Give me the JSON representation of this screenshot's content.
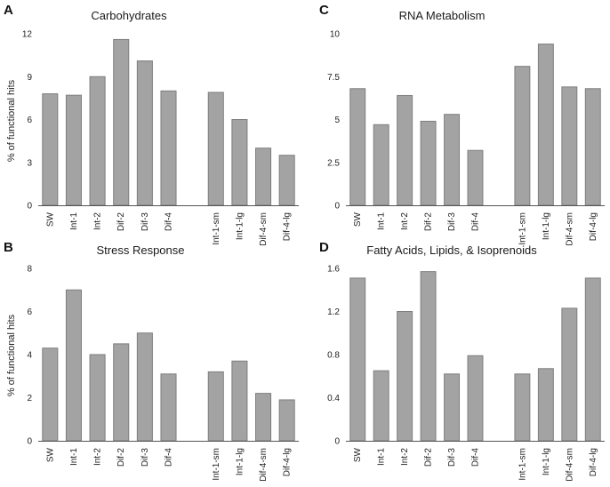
{
  "colors": {
    "bar_fill": "#a3a3a3",
    "bar_stroke": "#7e7e7e",
    "axis": "#555555",
    "text": "#222222"
  },
  "chart_data": [
    {
      "panel": "A",
      "type": "bar",
      "title": "Carbohydrates",
      "ylabel": "% of functional hits",
      "xlabel": "",
      "ylim": [
        0,
        12
      ],
      "yticks": [
        {
          "v": 0,
          "label": "0"
        },
        {
          "v": 3,
          "label": "3"
        },
        {
          "v": 6,
          "label": "6"
        },
        {
          "v": 9,
          "label": "9"
        },
        {
          "v": 12,
          "label": "12"
        }
      ],
      "categories": [
        "SW",
        "Int-1",
        "Int-2",
        "Dif-2",
        "Dif-3",
        "Dif-4",
        "",
        "Int-1-sm",
        "Int-1-lg",
        "Dif-4-sm",
        "Dif-4-lg"
      ],
      "values": [
        7.8,
        7.7,
        9.0,
        11.6,
        10.1,
        8.0,
        null,
        7.9,
        6.0,
        4.0,
        3.5
      ]
    },
    {
      "panel": "C",
      "type": "bar",
      "title": "RNA Metabolism",
      "ylabel": "",
      "xlabel": "",
      "ylim": [
        0,
        10
      ],
      "yticks": [
        {
          "v": 0,
          "label": "0"
        },
        {
          "v": 2.5,
          "label": "2.5"
        },
        {
          "v": 5,
          "label": "5"
        },
        {
          "v": 7.5,
          "label": "7.5"
        },
        {
          "v": 10,
          "label": "10"
        }
      ],
      "categories": [
        "SW",
        "Int-1",
        "Int-2",
        "Dif-2",
        "Dif-3",
        "Dif-4",
        "",
        "Int-1-sm",
        "Int-1-lg",
        "Dif-4-sm",
        "Dif-4-lg"
      ],
      "values": [
        6.8,
        4.7,
        6.4,
        4.9,
        5.3,
        3.2,
        null,
        8.1,
        9.4,
        6.9,
        6.8
      ]
    },
    {
      "panel": "B",
      "type": "bar",
      "title": "Stress Response",
      "ylabel": "% of functional hits",
      "xlabel": "",
      "ylim": [
        0,
        8
      ],
      "yticks": [
        {
          "v": 0,
          "label": "0"
        },
        {
          "v": 2,
          "label": "2"
        },
        {
          "v": 4,
          "label": "4"
        },
        {
          "v": 6,
          "label": "6"
        },
        {
          "v": 8,
          "label": "8"
        }
      ],
      "categories": [
        "SW",
        "Int-1",
        "Int-2",
        "Dif-2",
        "Dif-3",
        "Dif-4",
        "",
        "Int-1-sm",
        "Int-1-lg",
        "Dif-4-sm",
        "Dif-4-lg"
      ],
      "values": [
        4.3,
        7.0,
        4.0,
        4.5,
        5.0,
        3.1,
        null,
        3.2,
        3.7,
        2.2,
        1.9
      ]
    },
    {
      "panel": "D",
      "type": "bar",
      "title": "Fatty Acids, Lipids, & Isoprenoids",
      "ylabel": "",
      "xlabel": "",
      "ylim": [
        0,
        1.6
      ],
      "yticks": [
        {
          "v": 0,
          "label": "0"
        },
        {
          "v": 0.4,
          "label": "0.4"
        },
        {
          "v": 0.8,
          "label": "0.8"
        },
        {
          "v": 1.2,
          "label": "1.2"
        },
        {
          "v": 1.6,
          "label": "1.6"
        }
      ],
      "categories": [
        "SW",
        "Int-1",
        "Int-2",
        "Dif-2",
        "Dif-3",
        "Dif-4",
        "",
        "Int-1-sm",
        "Int-1-lg",
        "Dif-4-sm",
        "Dif-4-lg"
      ],
      "values": [
        1.51,
        0.65,
        1.2,
        1.57,
        0.62,
        0.79,
        null,
        0.62,
        0.67,
        1.23,
        1.51
      ]
    }
  ]
}
